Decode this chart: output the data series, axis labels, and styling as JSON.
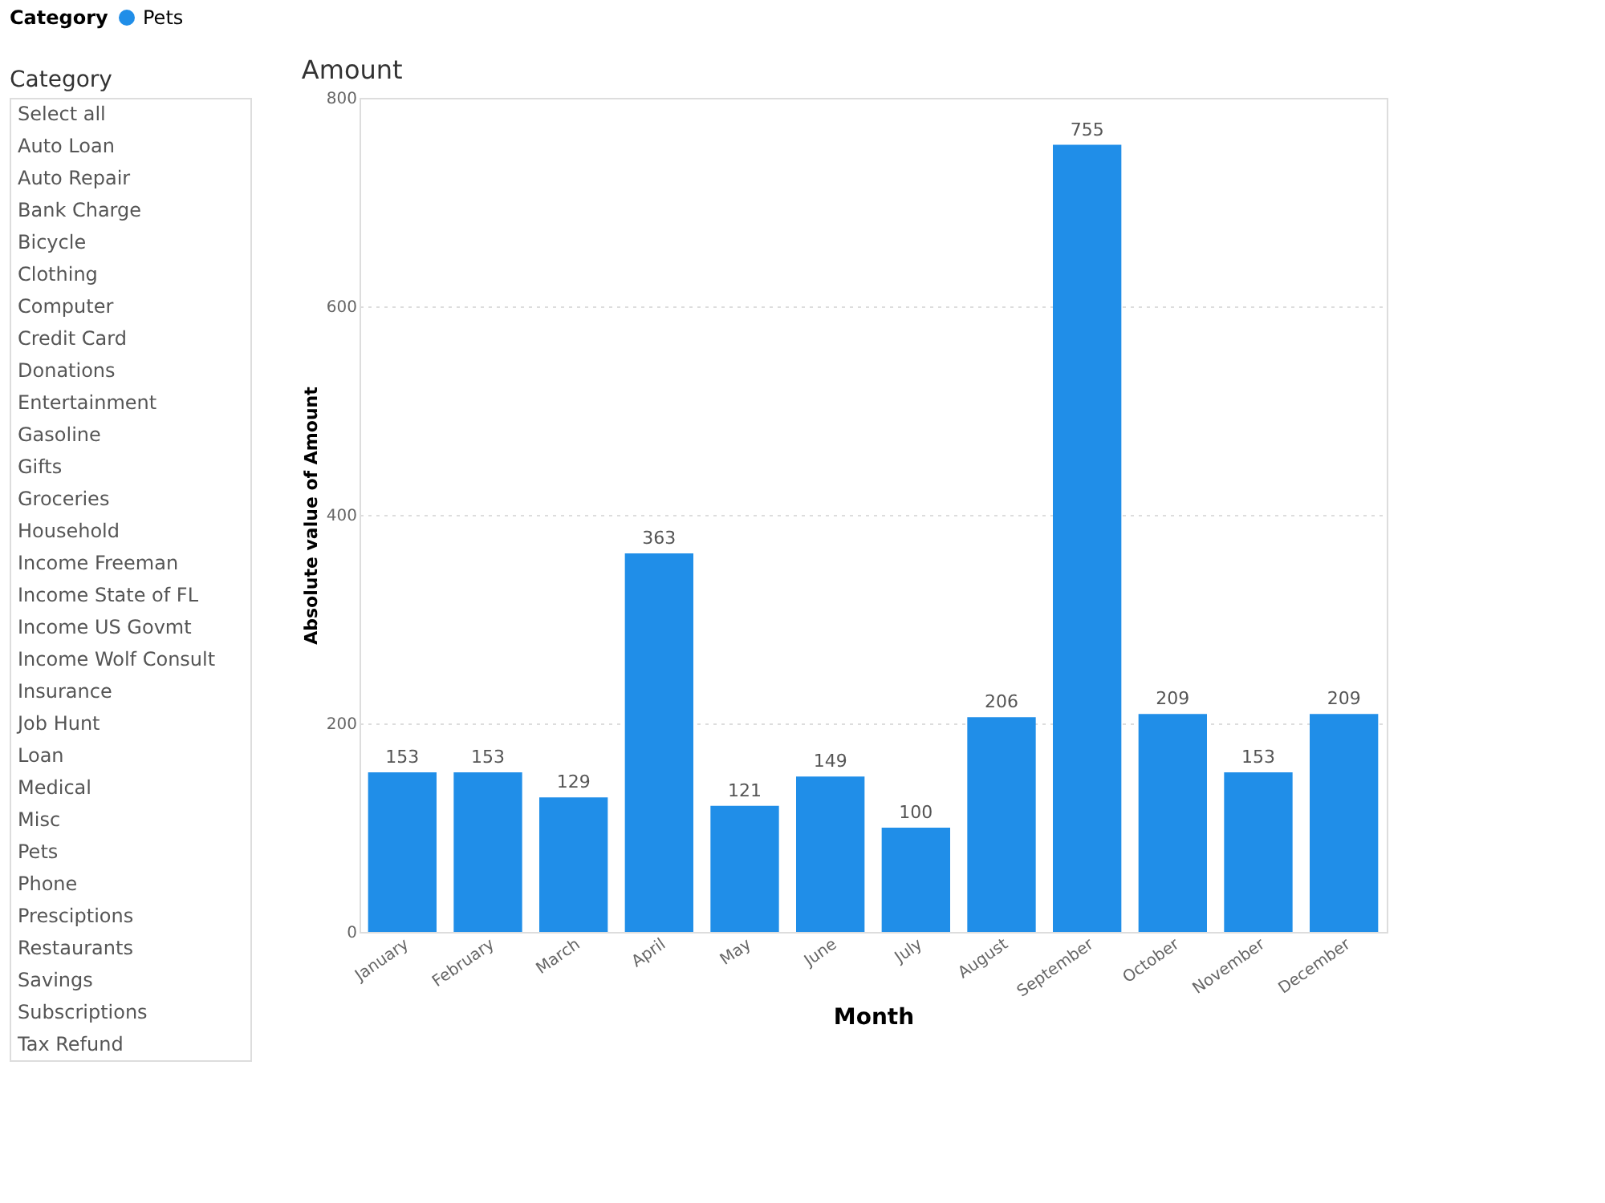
{
  "chart_data": [
    {
      "type": "other",
      "title": "Category",
      "annotations": [
        "Select all",
        "Auto Loan",
        "Auto Repair",
        "Bank Charge",
        "Bicycle",
        "Clothing",
        "Computer",
        "Credit Card",
        "Donations",
        "Entertainment",
        "Gasoline",
        "Gifts",
        "Groceries",
        "Household",
        "Income Freeman",
        "Income State of FL",
        "Income US Govmt",
        "Income Wolf Consult",
        "Insurance",
        "Job Hunt",
        "Loan",
        "Medical",
        "Misc",
        "Pets",
        "Phone",
        "Presciptions",
        "Restaurants",
        "Savings",
        "Subscriptions",
        "Tax Refund"
      ]
    },
    {
      "type": "bar",
      "title": "Amount",
      "xlabel": "Month",
      "ylabel": "Absolute value of Amount",
      "legend_title": "Category",
      "legend": "top left",
      "categories": [
        "January",
        "February",
        "March",
        "April",
        "May",
        "June",
        "July",
        "August",
        "September",
        "October",
        "November",
        "December"
      ],
      "series": [
        {
          "name": "Pets",
          "color": "#208ee8",
          "values": [
            153,
            153,
            129,
            363,
            121,
            149,
            100,
            206,
            755,
            209,
            153,
            209
          ]
        }
      ],
      "ylim": [
        0,
        800
      ],
      "yticks": [
        0,
        200,
        400,
        600,
        800
      ],
      "grid": "y",
      "data_labels": true
    }
  ]
}
